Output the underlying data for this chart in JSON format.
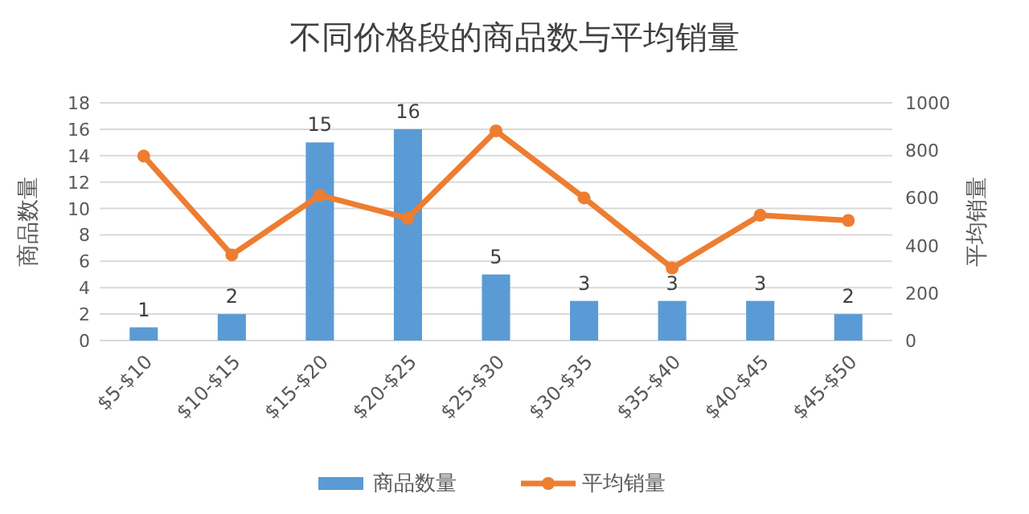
{
  "chart_data": {
    "type": "bar",
    "title": "不同价格段的商品数与平均销量",
    "ylabel": "商品数量",
    "y2label": "平均销量",
    "categories": [
      "$5-$10",
      "$10-$15",
      "$15-$20",
      "$20-$25",
      "$25-$30",
      "$30-$35",
      "$35-$40",
      "$40-$45",
      "$45-$50"
    ],
    "series": [
      {
        "name": "商品数量",
        "color": "#5b9bd5",
        "values": [
          1,
          2,
          15,
          16,
          5,
          3,
          3,
          3,
          2
        ],
        "value_labels": [
          "1",
          "2",
          "15",
          "16",
          "5",
          "3",
          "3",
          "3",
          "2"
        ]
      },
      {
        "name": "平均销量",
        "type": "line",
        "axis": "y2",
        "color": "#ed7d31",
        "marker": "circle",
        "values": [
          776,
          360,
          611,
          514,
          882,
          600,
          305,
          527,
          505
        ]
      }
    ],
    "ylim": [
      0,
      18
    ],
    "yticks": [
      0,
      2,
      4,
      6,
      8,
      10,
      12,
      14,
      16,
      18
    ],
    "y2lim": [
      0,
      1000
    ],
    "y2ticks": [
      0,
      200,
      400,
      600,
      800,
      1000
    ],
    "grid": "y",
    "legend": "bottom"
  }
}
